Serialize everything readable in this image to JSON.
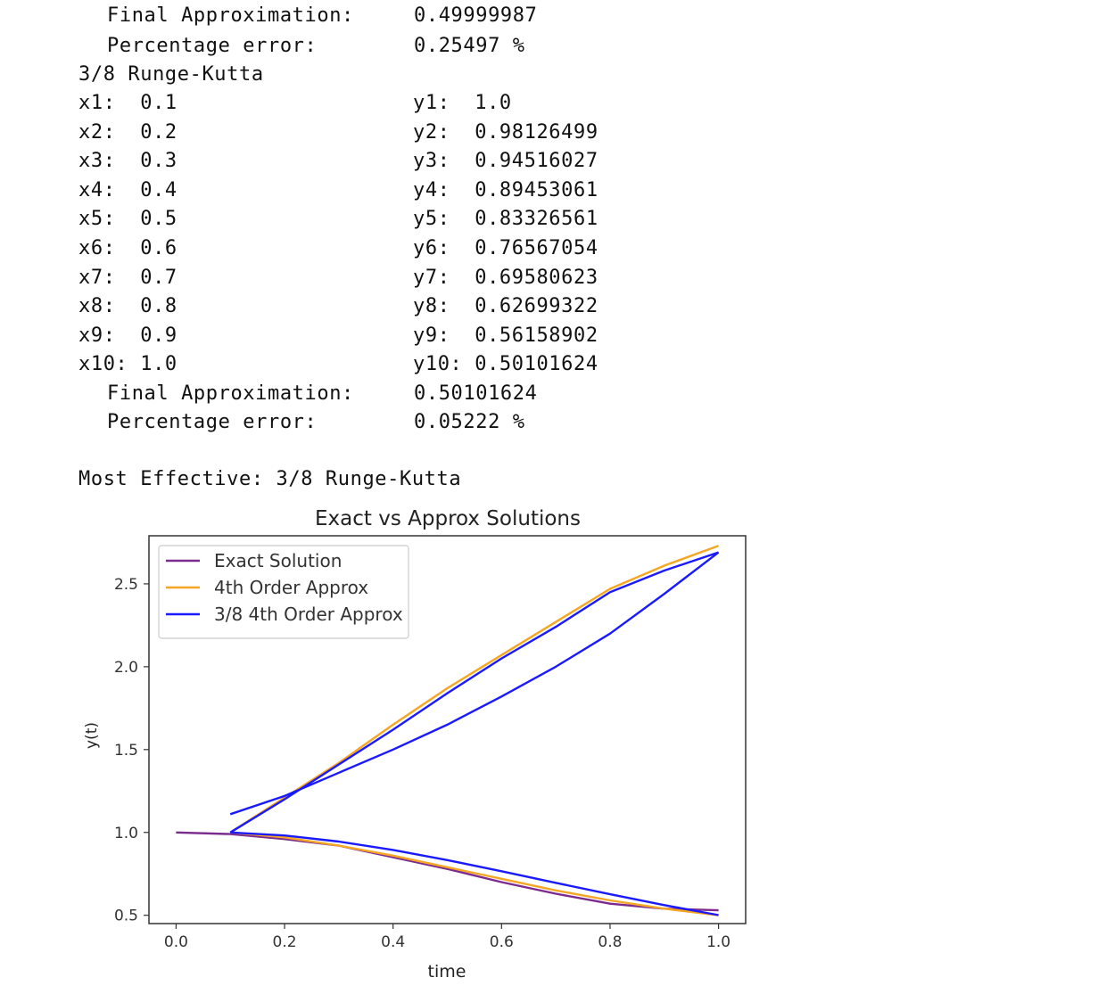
{
  "output": {
    "prev_final_label": "Final Approximation:",
    "prev_final_value": "0.49999987",
    "prev_error_label": "Percentage error:",
    "prev_error_value": "0.25497 %",
    "method_header": "3/8 Runge-Kutta",
    "rows": [
      {
        "x": "x1:  0.1",
        "y": "y1:  1.0"
      },
      {
        "x": "x2:  0.2",
        "y": "y2:  0.98126499"
      },
      {
        "x": "x3:  0.3",
        "y": "y3:  0.94516027"
      },
      {
        "x": "x4:  0.4",
        "y": "y4:  0.89453061"
      },
      {
        "x": "x5:  0.5",
        "y": "y5:  0.83326561"
      },
      {
        "x": "x6:  0.6",
        "y": "y6:  0.76567054"
      },
      {
        "x": "x7:  0.7",
        "y": "y7:  0.69580623"
      },
      {
        "x": "x8:  0.8",
        "y": "y8:  0.62699322"
      },
      {
        "x": "x9:  0.9",
        "y": "y9:  0.56158902"
      },
      {
        "x": "x10: 1.0",
        "y": "y10: 0.50101624"
      }
    ],
    "final_label": "Final Approximation:",
    "final_value": "0.50101624",
    "error_label": "Percentage error:",
    "error_value": "0.05222 %",
    "most_effective": "Most Effective: 3/8 Runge-Kutta"
  },
  "chart_data": {
    "type": "line",
    "title": "Exact vs Approx Solutions",
    "xlabel": "time",
    "ylabel": "y(t)",
    "xlim": [
      -0.05,
      1.05
    ],
    "ylim": [
      0.45,
      2.79
    ],
    "xticks": [
      0.0,
      0.2,
      0.4,
      0.6,
      0.8,
      1.0
    ],
    "xtick_labels": [
      "0.0",
      "0.2",
      "0.4",
      "0.6",
      "0.8",
      "1.0"
    ],
    "yticks": [
      0.5,
      1.0,
      1.5,
      2.0,
      2.5
    ],
    "ytick_labels": [
      "0.5",
      "1.0",
      "1.5",
      "2.0",
      "2.5"
    ],
    "legend_position": "top-left",
    "grid": false,
    "series": [
      {
        "name": "Exact Solution",
        "color": "#7b2a8e",
        "x": [
          0.0,
          0.1,
          0.2,
          0.3,
          0.4,
          0.5,
          0.6,
          0.7,
          0.8,
          0.9,
          1.0
        ],
        "y": [
          1.0,
          0.99,
          0.96,
          0.92,
          0.85,
          0.78,
          0.7,
          0.63,
          0.57,
          0.54,
          0.53
        ]
      },
      {
        "name": "4th Order Approx",
        "color": "#f5a623",
        "x": [
          0.1,
          0.2,
          0.3,
          0.4,
          0.5,
          0.6,
          0.7,
          0.8,
          0.9,
          1.0
        ],
        "y": [
          1.0,
          0.97,
          0.92,
          0.86,
          0.79,
          0.72,
          0.65,
          0.59,
          0.54,
          0.5
        ]
      },
      {
        "name": "3/8 4th Order Approx",
        "color": "#1a1aff",
        "x": [
          0.1,
          0.2,
          0.3,
          0.4,
          0.5,
          0.6,
          0.7,
          0.8,
          0.9,
          1.0
        ],
        "y": [
          1.0,
          0.98126499,
          0.94516027,
          0.89453061,
          0.83326561,
          0.76567054,
          0.69580623,
          0.62699322,
          0.56158902,
          0.50101624
        ]
      },
      {
        "name": "",
        "color": "#f5a623",
        "x": [
          0.1,
          0.2,
          0.3,
          0.4,
          0.5,
          0.6,
          0.7,
          0.8,
          0.9,
          1.0
        ],
        "y": [
          1.0,
          1.21,
          1.42,
          1.65,
          1.87,
          2.07,
          2.27,
          2.47,
          2.61,
          2.73
        ]
      },
      {
        "name": "",
        "color": "#1a1aff",
        "x": [
          0.1,
          0.2,
          0.3,
          0.4,
          0.5,
          0.6,
          0.7,
          0.8,
          0.9,
          1.0
        ],
        "y": [
          1.0,
          1.2,
          1.41,
          1.62,
          1.84,
          2.05,
          2.24,
          2.45,
          2.58,
          2.69
        ]
      },
      {
        "name": "",
        "color": "#1a1aff",
        "x": [
          0.1,
          0.2,
          0.3,
          0.4,
          0.5,
          0.6,
          0.7,
          0.8,
          0.9,
          1.0
        ],
        "y": [
          1.11,
          1.22,
          1.36,
          1.5,
          1.65,
          1.82,
          2.0,
          2.2,
          2.44,
          2.69
        ]
      }
    ]
  }
}
